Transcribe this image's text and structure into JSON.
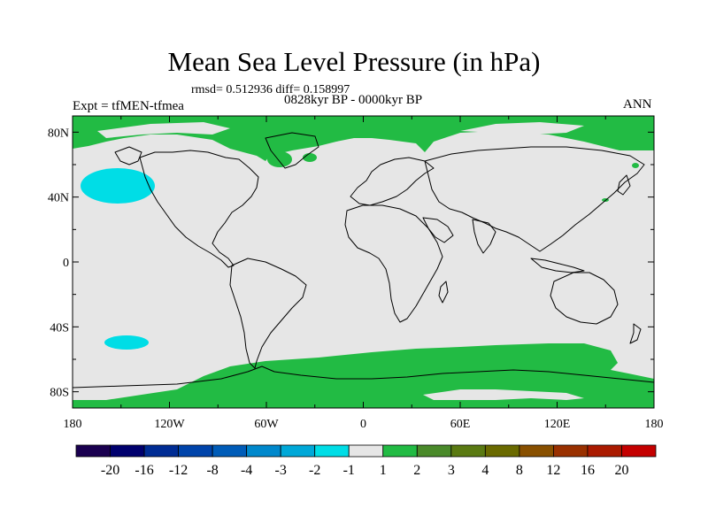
{
  "title": "Mean Sea Level Pressure (in hPa)",
  "stats": "rmsd= 0.512936 diff= 0.158997",
  "period": "0828kyr BP - 0000kyr BP",
  "experiment": "Expt = tfMEN-tfmea",
  "season": "ANN",
  "axes": {
    "x_ticks": [
      "180",
      "120W",
      "60W",
      "0",
      "60E",
      "120E",
      "180"
    ],
    "y_ticks": [
      "80N",
      "40N",
      "0",
      "40S",
      "80S"
    ]
  },
  "colorbar": {
    "colors": [
      "#1a0050",
      "#00006e",
      "#002c94",
      "#0044aa",
      "#005cb8",
      "#0088cc",
      "#00a8d8",
      "#00dde6",
      "#e6e6e6",
      "#22bb44",
      "#4a8a2a",
      "#5a7a12",
      "#6a6a00",
      "#885000",
      "#993000",
      "#aa1a00",
      "#c40000"
    ],
    "labels": [
      "-20",
      "-16",
      "-12",
      "-8",
      "-4",
      "-3",
      "-2",
      "-1",
      "1",
      "2",
      "3",
      "4",
      "8",
      "12",
      "16",
      "20"
    ]
  },
  "map_colors": {
    "land_sea": "#e6e6e6",
    "positive": "#22bb44",
    "negative": "#00dde6",
    "coast": "#000000"
  }
}
